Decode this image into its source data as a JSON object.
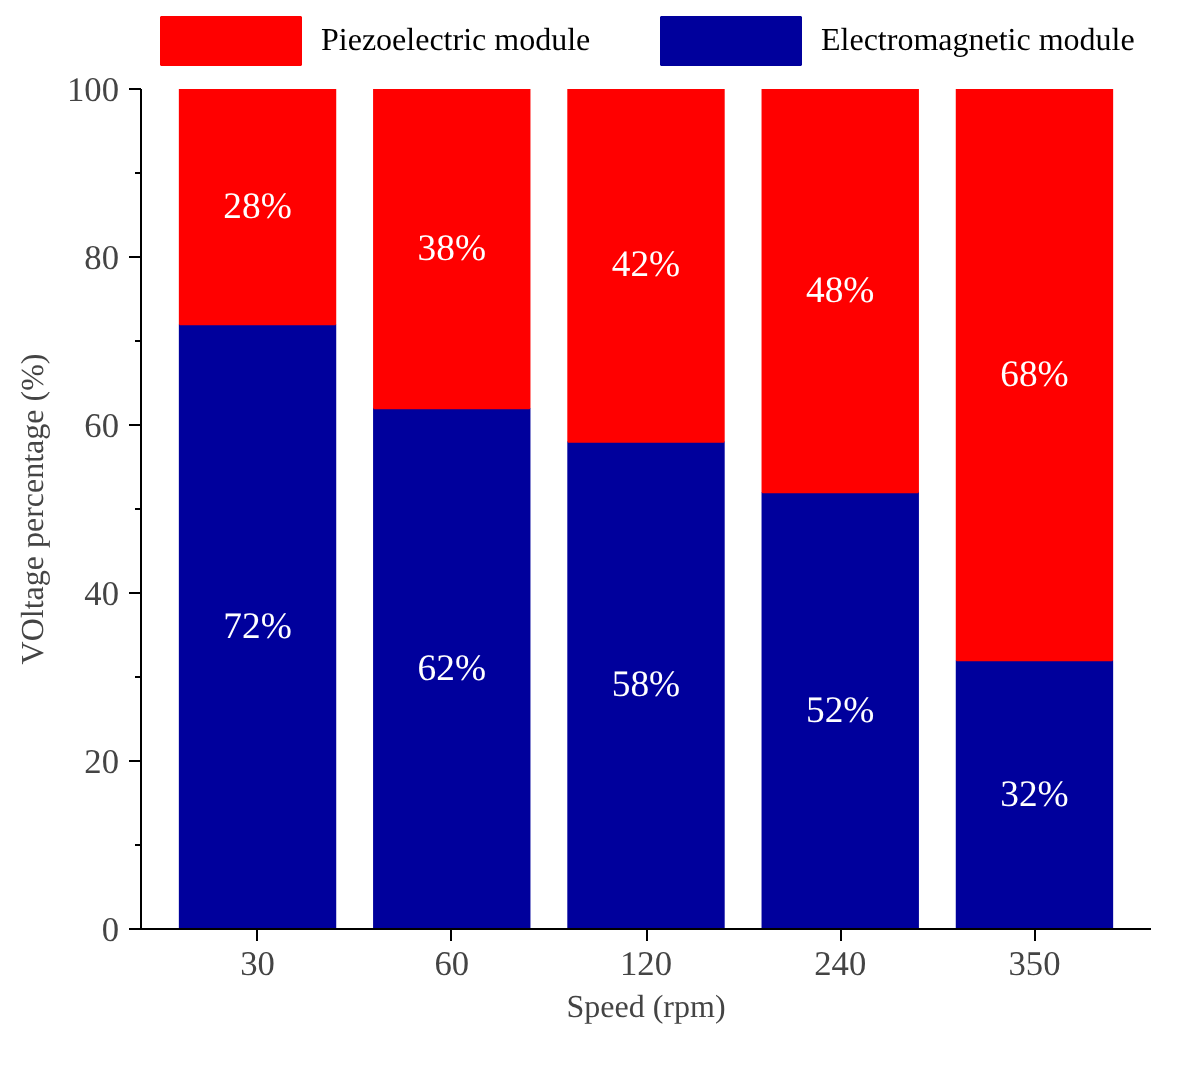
{
  "chart_data": {
    "type": "bar",
    "stacked": true,
    "xlabel": "Speed (rpm)",
    "ylabel": "VOltage percentage (%)",
    "categories": [
      "30",
      "60",
      "120",
      "240",
      "350"
    ],
    "series": [
      {
        "name": "Electromagnetic module",
        "color": "#00009c",
        "values": [
          72,
          62,
          58,
          52,
          32
        ],
        "value_labels": [
          "72%",
          "62%",
          "58%",
          "52%",
          "32%"
        ]
      },
      {
        "name": "Piezoelectric module",
        "color": "#ff0000",
        "values": [
          28,
          38,
          42,
          48,
          68
        ],
        "value_labels": [
          "28%",
          "38%",
          "42%",
          "48%",
          "68%"
        ]
      }
    ],
    "ylim": [
      0,
      100
    ],
    "yticks": [
      0,
      20,
      40,
      60,
      80,
      100
    ],
    "legend": "top",
    "grid": false
  }
}
